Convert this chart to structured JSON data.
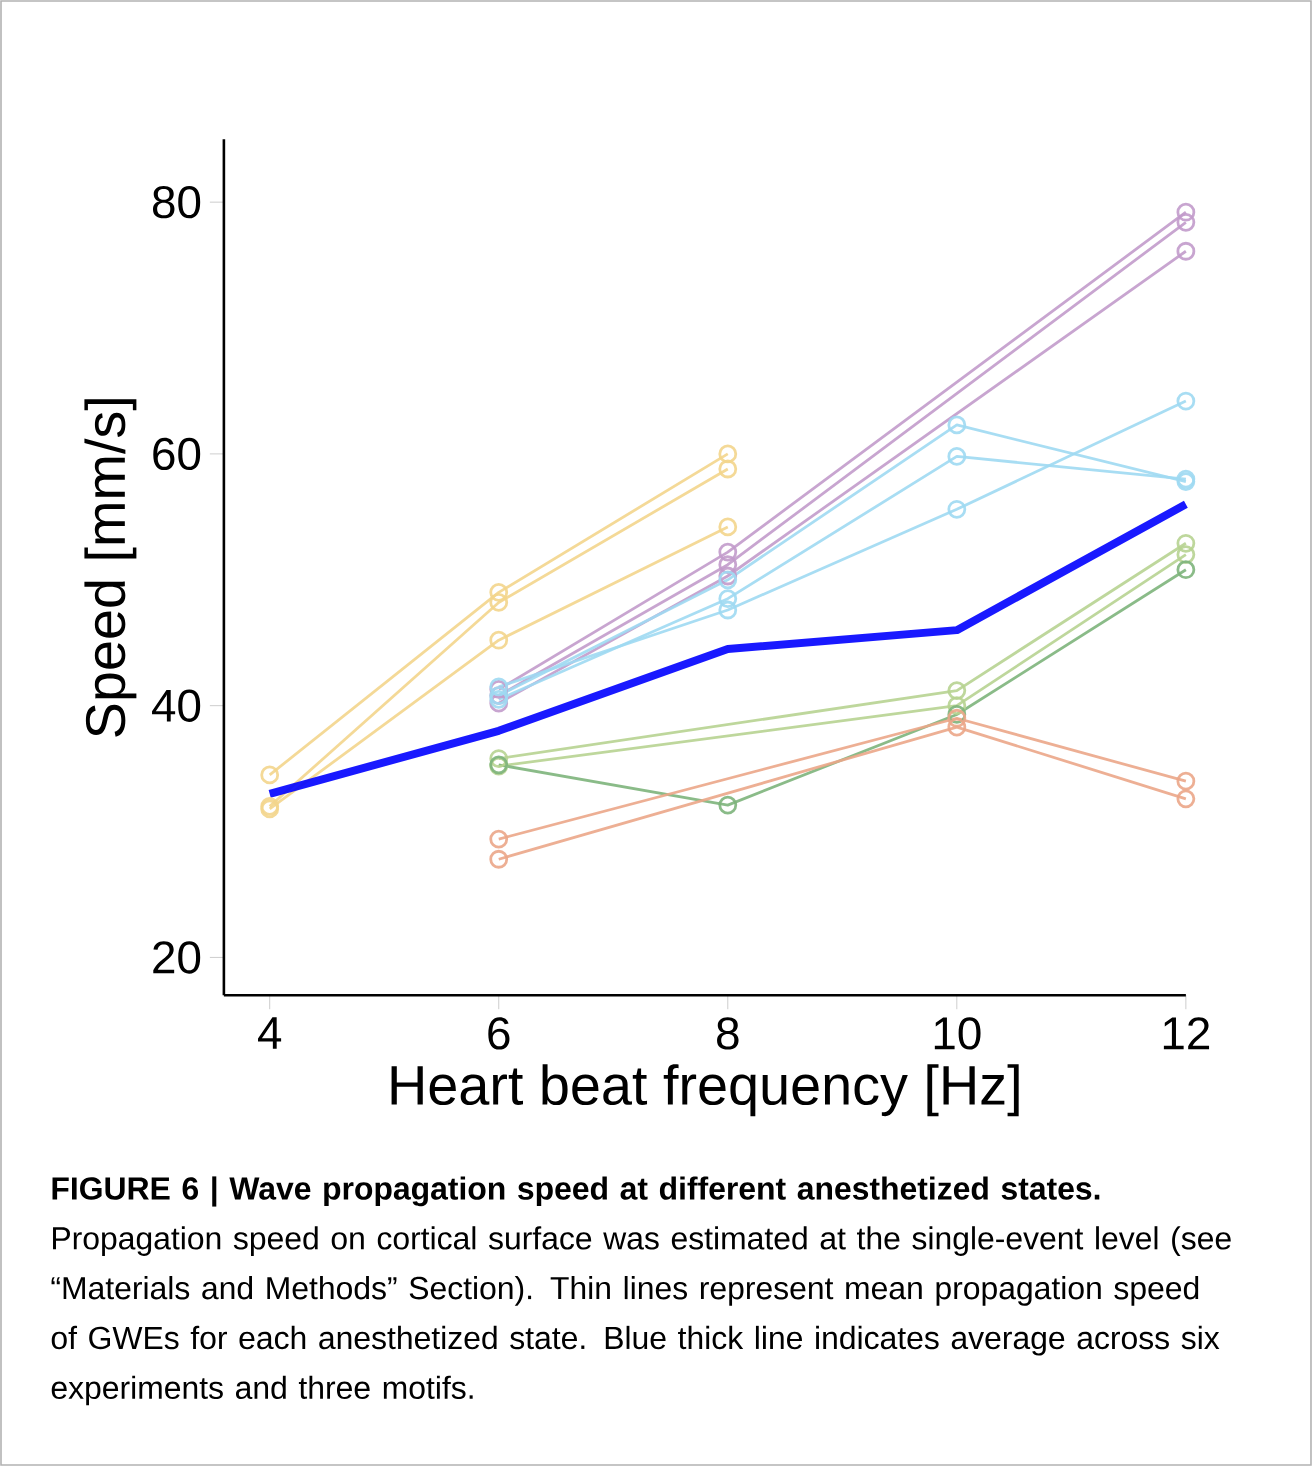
{
  "chart_data": {
    "type": "line",
    "title": "FIGURE 6 | Wave propagation speed at different anesthetized states.",
    "xlabel": "Heart beat frequency [Hz]",
    "ylabel": "Speed [mm/s]",
    "annotations": [
      "Propagation speed on cortical surface was estimated at the single-event level (see “Materials and Methods” Section). Thin lines represent mean propagation speed of GWEs for each anesthetized state. Blue thick line indicates average across six experiments and three motifs."
    ],
    "xlim": [
      3.6,
      12
    ],
    "ylim": [
      17,
      85
    ],
    "xticks": [
      4,
      6,
      8,
      10,
      12
    ],
    "yticks": [
      20,
      40,
      60,
      80
    ],
    "grid": false,
    "line_style": "solid",
    "series": [
      {
        "color": "#f3d58c",
        "marker": "circle",
        "x": [
          4,
          6,
          8
        ],
        "values": [
          34.5,
          49,
          60
        ]
      },
      {
        "color": "#f3d58c",
        "marker": "circle",
        "x": [
          4,
          6,
          8
        ],
        "values": [
          32,
          48.2,
          58.8
        ]
      },
      {
        "color": "#f3d58c",
        "marker": "circle",
        "x": [
          4,
          6,
          8
        ],
        "values": [
          31.8,
          45.2,
          54.2
        ]
      },
      {
        "color": "#c29bcb",
        "marker": "circle",
        "x": [
          6,
          8,
          12
        ],
        "values": [
          41.3,
          52.2,
          79.2
        ]
      },
      {
        "color": "#c29bcb",
        "marker": "circle",
        "x": [
          6,
          8,
          12
        ],
        "values": [
          40.8,
          51.2,
          78.4
        ]
      },
      {
        "color": "#c29bcb",
        "marker": "circle",
        "x": [
          6,
          8,
          12
        ],
        "values": [
          40.2,
          50.3,
          76.1
        ]
      },
      {
        "color": "#9fd9f2",
        "marker": "circle",
        "x": [
          6,
          8,
          10,
          12
        ],
        "values": [
          40.8,
          50,
          62.3,
          57.8
        ]
      },
      {
        "color": "#9fd9f2",
        "marker": "circle",
        "x": [
          6,
          8,
          10,
          12
        ],
        "values": [
          40.5,
          48.5,
          59.8,
          58
        ]
      },
      {
        "color": "#9fd9f2",
        "marker": "circle",
        "x": [
          6,
          8,
          10,
          12
        ],
        "values": [
          41.5,
          47.6,
          55.6,
          64.2
        ]
      },
      {
        "color": "#b7d391",
        "marker": "circle",
        "x": [
          6,
          10,
          12
        ],
        "values": [
          35.8,
          41.2,
          52.9
        ]
      },
      {
        "color": "#b7d391",
        "marker": "circle",
        "x": [
          6,
          10,
          12
        ],
        "values": [
          35.2,
          40,
          52
        ]
      },
      {
        "color": "#7db47b",
        "marker": "circle",
        "x": [
          6,
          8,
          10,
          12
        ],
        "values": [
          35.3,
          32.1,
          39.3,
          50.8
        ]
      },
      {
        "color": "#eba688",
        "marker": "circle",
        "x": [
          6,
          10,
          12
        ],
        "values": [
          29.4,
          39,
          34
        ]
      },
      {
        "color": "#eba688",
        "marker": "circle",
        "x": [
          6,
          10,
          12
        ],
        "values": [
          27.8,
          38.3,
          32.6
        ]
      },
      {
        "color": "#0000ff",
        "marker": "none",
        "x": [
          4,
          6,
          8,
          10,
          12
        ],
        "values": [
          33,
          38,
          44.5,
          46,
          56
        ]
      }
    ]
  }
}
